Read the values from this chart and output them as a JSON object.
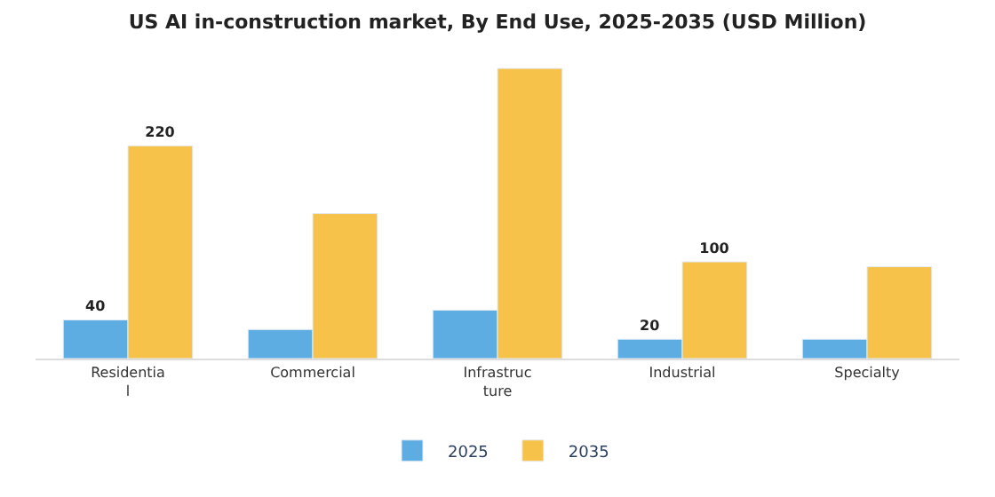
{
  "chart_data": {
    "type": "bar",
    "title": "US AI in-construction market, By End Use, 2025-2035 (USD Million)",
    "categories": [
      "Residentia\nl",
      "Commercial",
      "Infrastruc\nture",
      "Industrial",
      "Specialty"
    ],
    "series": [
      {
        "name": "2025",
        "color": "#5dade2",
        "values": [
          40,
          30,
          50,
          20,
          20
        ],
        "value_labels": [
          "40",
          null,
          null,
          "20",
          null
        ]
      },
      {
        "name": "2035",
        "color": "#f7c24a",
        "values": [
          220,
          150,
          300,
          100,
          95
        ],
        "value_labels": [
          "220",
          null,
          null,
          "100",
          null
        ]
      }
    ],
    "legend": "bottom",
    "tick_labels": "x"
  }
}
